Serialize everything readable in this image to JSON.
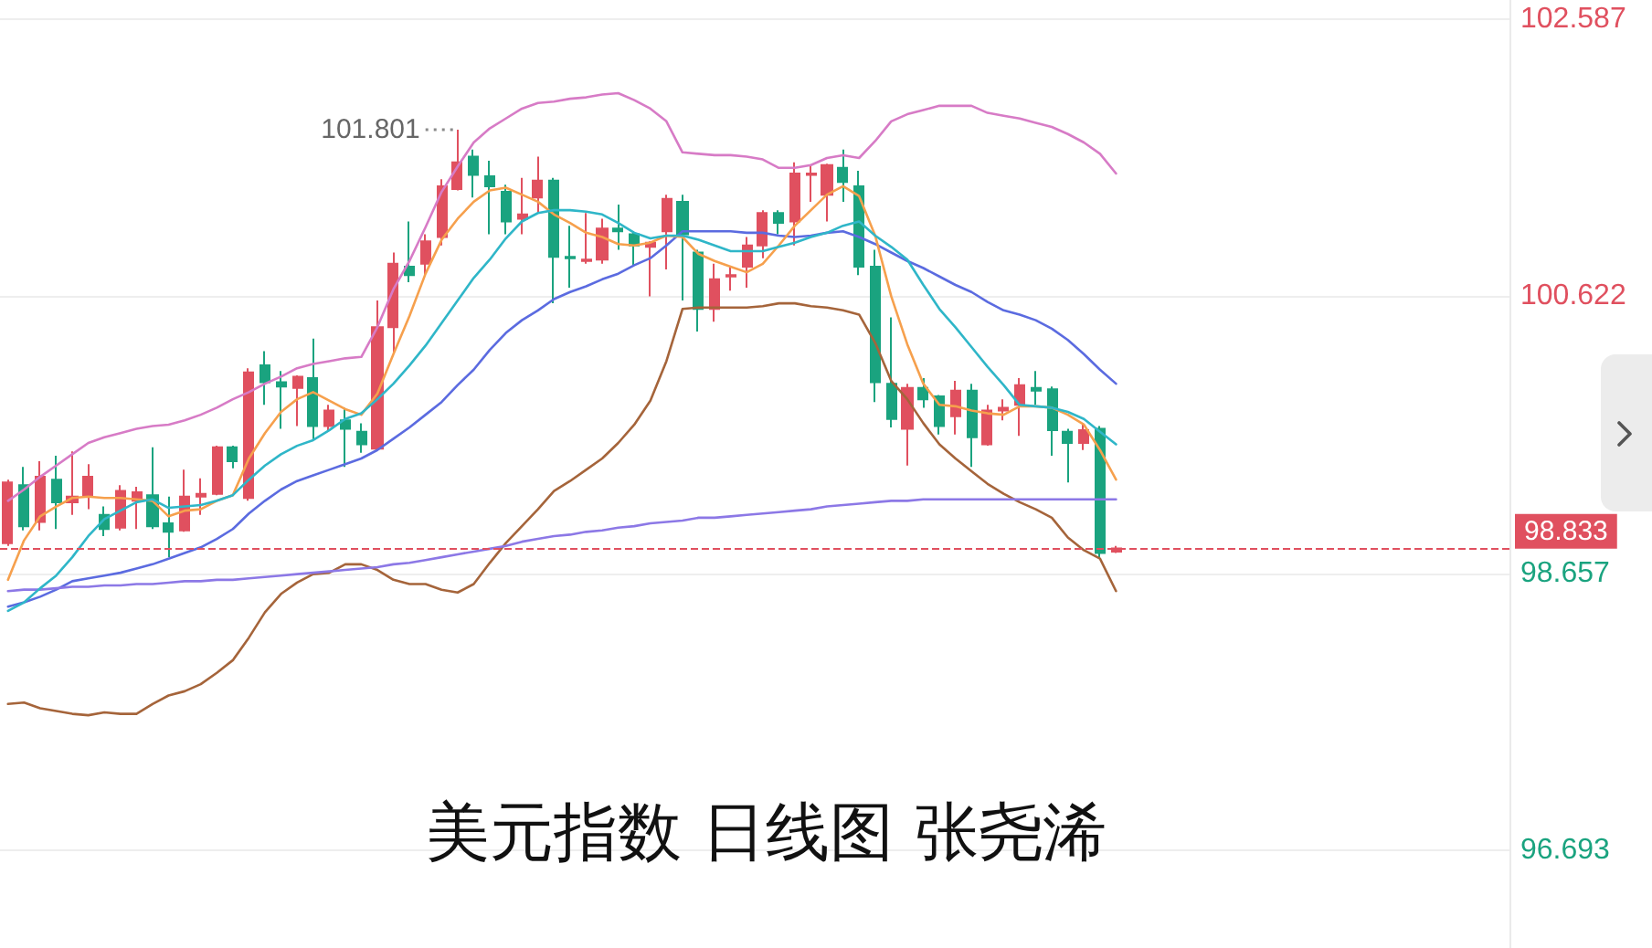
{
  "chart_data": {
    "type": "candlestick",
    "title": "美元指数 日线图 张尧浠",
    "categories": [
      null,
      null,
      null,
      null,
      null,
      null,
      null,
      null,
      null,
      null,
      null,
      null,
      null,
      null,
      null,
      null,
      null,
      null,
      null,
      null,
      null,
      null,
      null,
      null,
      null,
      null,
      null,
      null,
      null,
      null,
      null,
      null,
      null,
      null,
      null,
      null,
      null,
      null,
      null,
      null,
      null,
      null,
      null,
      null,
      null,
      null,
      null,
      null,
      null,
      null,
      null,
      null,
      null,
      null,
      null,
      null,
      null,
      null,
      null,
      null,
      null,
      null,
      null,
      null,
      null,
      null,
      null,
      null,
      null,
      null
    ],
    "ohlc": [
      [
        98.87,
        99.32,
        98.85,
        99.3
      ],
      [
        99.28,
        99.41,
        98.96,
        98.99
      ],
      [
        99.02,
        99.45,
        98.96,
        99.34
      ],
      [
        99.32,
        99.49,
        98.97,
        99.16
      ],
      [
        99.16,
        99.52,
        99.07,
        99.2
      ],
      [
        99.2,
        99.43,
        99.11,
        99.34
      ],
      [
        99.07,
        99.13,
        98.92,
        98.97
      ],
      [
        98.98,
        99.28,
        98.96,
        99.24
      ],
      [
        99.17,
        99.27,
        98.97,
        99.23
      ],
      [
        99.21,
        99.55,
        98.97,
        98.99
      ],
      [
        99.01,
        99.2,
        98.77,
        98.95
      ],
      [
        98.96,
        99.39,
        98.95,
        99.2
      ],
      [
        99.2,
        99.33,
        99.07,
        99.22
      ],
      [
        99.22,
        99.56,
        99.21,
        99.55
      ],
      [
        99.55,
        99.56,
        99.4,
        99.45
      ],
      [
        99.19,
        100.11,
        99.17,
        100.08
      ],
      [
        100.13,
        100.23,
        99.85,
        100.01
      ],
      [
        100.01,
        100.09,
        99.68,
        99.98
      ],
      [
        99.97,
        100.06,
        99.7,
        100.05
      ],
      [
        100.04,
        100.32,
        99.6,
        99.7
      ],
      [
        99.7,
        99.85,
        99.66,
        99.81
      ],
      [
        99.74,
        99.83,
        99.41,
        99.68
      ],
      [
        99.66,
        99.72,
        99.51,
        99.57
      ],
      [
        99.54,
        100.59,
        99.53,
        100.4
      ],
      [
        100.4,
        100.93,
        100.21,
        100.85
      ],
      [
        100.83,
        101.15,
        100.72,
        100.77
      ],
      [
        100.85,
        101.06,
        100.77,
        101.01
      ],
      [
        101.04,
        101.45,
        100.98,
        101.4
      ],
      [
        101.38,
        101.801,
        101.37,
        101.57
      ],
      [
        101.61,
        101.66,
        101.32,
        101.48
      ],
      [
        101.47,
        101.58,
        101.06,
        101.4
      ],
      [
        101.36,
        101.41,
        101.06,
        101.15
      ],
      [
        101.17,
        101.46,
        101.06,
        101.2
      ],
      [
        101.32,
        101.61,
        101.21,
        101.44
      ],
      [
        101.44,
        101.46,
        100.57,
        100.9
      ],
      [
        100.9,
        101.12,
        100.68,
        100.89
      ],
      [
        100.87,
        101.21,
        100.85,
        100.88
      ],
      [
        100.88,
        101.17,
        100.85,
        101.1
      ],
      [
        101.1,
        101.27,
        100.95,
        101.08
      ],
      [
        101.06,
        101.08,
        100.83,
        100.98
      ],
      [
        100.97,
        101.01,
        100.62,
        101.0
      ],
      [
        101.08,
        101.34,
        100.81,
        101.31
      ],
      [
        101.29,
        101.34,
        100.59,
        101.06
      ],
      [
        100.93,
        100.95,
        100.37,
        100.53
      ],
      [
        100.53,
        100.85,
        100.44,
        100.74
      ],
      [
        100.76,
        100.83,
        100.66,
        100.77
      ],
      [
        100.83,
        101.04,
        100.68,
        100.98
      ],
      [
        100.98,
        101.23,
        100.89,
        101.21
      ],
      [
        101.21,
        101.23,
        101.06,
        101.14
      ],
      [
        101.15,
        101.57,
        100.98,
        101.49
      ],
      [
        101.48,
        101.55,
        101.29,
        101.49
      ],
      [
        101.34,
        101.56,
        101.15,
        101.55
      ],
      [
        101.53,
        101.66,
        101.29,
        101.43
      ],
      [
        101.4,
        101.51,
        100.77,
        100.83
      ],
      [
        100.83,
        100.95,
        99.87,
        100.01
      ],
      [
        100.0,
        100.47,
        99.69,
        99.75
      ],
      [
        99.68,
        100.0,
        99.42,
        99.97
      ],
      [
        99.97,
        100.04,
        99.83,
        99.89
      ],
      [
        99.91,
        99.92,
        99.64,
        99.7
      ],
      [
        99.77,
        100.02,
        99.64,
        99.95
      ],
      [
        99.95,
        100.0,
        99.41,
        99.62
      ],
      [
        99.57,
        99.85,
        99.56,
        99.81
      ],
      [
        99.81,
        99.89,
        99.74,
        99.83
      ],
      [
        99.85,
        100.04,
        99.63,
        99.99
      ],
      [
        99.97,
        100.09,
        99.85,
        99.95
      ],
      [
        99.96,
        99.98,
        99.49,
        99.67
      ],
      [
        99.66,
        99.68,
        99.3,
        99.58
      ],
      [
        99.58,
        99.72,
        99.53,
        99.67
      ],
      [
        99.68,
        99.7,
        98.77,
        98.8
      ],
      [
        98.81,
        98.85,
        98.8,
        98.833
      ]
    ],
    "colors": [
      "#e0505f",
      "#1aa37f",
      "#e0505f",
      "#1aa37f",
      "#e0505f",
      "#e0505f",
      "#1aa37f",
      "#e0505f",
      "#e0505f",
      "#1aa37f",
      "#1aa37f",
      "#e0505f",
      "#e0505f",
      "#e0505f",
      "#1aa37f",
      "#e0505f",
      "#1aa37f",
      "#1aa37f",
      "#e0505f",
      "#1aa37f",
      "#e0505f",
      "#1aa37f",
      "#1aa37f",
      "#e0505f",
      "#e0505f",
      "#1aa37f",
      "#e0505f",
      "#e0505f",
      "#e0505f",
      "#1aa37f",
      "#1aa37f",
      "#1aa37f",
      "#e0505f",
      "#e0505f",
      "#1aa37f",
      "#1aa37f",
      "#e0505f",
      "#e0505f",
      "#1aa37f",
      "#1aa37f",
      "#e0505f",
      "#e0505f",
      "#1aa37f",
      "#1aa37f",
      "#e0505f",
      "#e0505f",
      "#e0505f",
      "#e0505f",
      "#1aa37f",
      "#e0505f",
      "#e0505f",
      "#e0505f",
      "#1aa37f",
      "#1aa37f",
      "#1aa37f",
      "#1aa37f",
      "#e0505f",
      "#1aa37f",
      "#1aa37f",
      "#e0505f",
      "#1aa37f",
      "#e0505f",
      "#e0505f",
      "#e0505f",
      "#1aa37f",
      "#1aa37f",
      "#1aa37f",
      "#e0505f",
      "#1aa37f",
      "#e0505f"
    ],
    "series": [
      {
        "type": "line",
        "color": "#d77bc6",
        "values": [
          99.17,
          99.25,
          99.34,
          99.42,
          99.5,
          99.58,
          99.62,
          99.65,
          99.68,
          99.7,
          99.71,
          99.74,
          99.78,
          99.83,
          99.89,
          99.94,
          100.0,
          100.05,
          100.11,
          100.14,
          100.16,
          100.18,
          100.19,
          100.4,
          100.67,
          100.87,
          101.11,
          101.36,
          101.54,
          101.71,
          101.81,
          101.88,
          101.95,
          101.99,
          102.0,
          102.02,
          102.03,
          102.05,
          102.06,
          102.01,
          101.95,
          101.86,
          101.64,
          101.63,
          101.62,
          101.62,
          101.61,
          101.59,
          101.53,
          101.53,
          101.55,
          101.6,
          101.62,
          101.6,
          101.72,
          101.86,
          101.91,
          101.94,
          101.97,
          101.97,
          101.97,
          101.92,
          101.9,
          101.88,
          101.85,
          101.82,
          101.77,
          101.71,
          101.63,
          101.49
        ]
      },
      {
        "type": "line",
        "color": "#a5643a",
        "values": [
          97.73,
          97.74,
          97.7,
          97.68,
          97.66,
          97.65,
          97.67,
          97.66,
          97.66,
          97.73,
          97.79,
          97.82,
          97.87,
          97.95,
          98.04,
          98.2,
          98.38,
          98.51,
          98.59,
          98.65,
          98.66,
          98.72,
          98.72,
          98.68,
          98.61,
          98.58,
          98.58,
          98.54,
          98.52,
          98.58,
          98.73,
          98.87,
          98.99,
          99.11,
          99.24,
          99.31,
          99.39,
          99.47,
          99.58,
          99.71,
          99.88,
          100.16,
          100.53,
          100.54,
          100.54,
          100.54,
          100.54,
          100.55,
          100.57,
          100.57,
          100.55,
          100.54,
          100.52,
          100.49,
          100.29,
          100.02,
          99.89,
          99.72,
          99.57,
          99.47,
          99.38,
          99.29,
          99.22,
          99.16,
          99.11,
          99.05,
          98.91,
          98.82,
          98.76,
          98.53
        ]
      },
      {
        "type": "line",
        "color": "#5b6be0",
        "values": [
          98.42,
          98.45,
          98.49,
          98.54,
          98.6,
          98.62,
          98.64,
          98.66,
          98.69,
          98.72,
          98.76,
          98.8,
          98.84,
          98.9,
          98.97,
          99.08,
          99.17,
          99.25,
          99.31,
          99.35,
          99.39,
          99.43,
          99.47,
          99.53,
          99.61,
          99.69,
          99.78,
          99.87,
          99.99,
          100.1,
          100.24,
          100.36,
          100.45,
          100.52,
          100.6,
          100.65,
          100.69,
          100.74,
          100.78,
          100.84,
          100.89,
          100.98,
          101.08,
          101.08,
          101.08,
          101.08,
          101.07,
          101.07,
          101.05,
          101.04,
          101.05,
          101.07,
          101.08,
          101.04,
          100.99,
          100.93,
          100.87,
          100.82,
          100.76,
          100.7,
          100.65,
          100.58,
          100.52,
          100.49,
          100.45,
          100.39,
          100.31,
          100.21,
          100.1,
          100.0
        ]
      },
      {
        "type": "line",
        "color": "#8c78e6",
        "values": [
          98.53,
          98.54,
          98.54,
          98.55,
          98.56,
          98.56,
          98.57,
          98.57,
          98.58,
          98.58,
          98.59,
          98.6,
          98.6,
          98.61,
          98.61,
          98.62,
          98.63,
          98.64,
          98.65,
          98.66,
          98.67,
          98.68,
          98.69,
          98.7,
          98.72,
          98.73,
          98.75,
          98.77,
          98.79,
          98.81,
          98.83,
          98.85,
          98.88,
          98.9,
          98.92,
          98.93,
          98.95,
          98.96,
          98.98,
          98.99,
          99.01,
          99.02,
          99.03,
          99.05,
          99.05,
          99.06,
          99.07,
          99.08,
          99.09,
          99.1,
          99.11,
          99.13,
          99.14,
          99.15,
          99.16,
          99.17,
          99.17,
          99.18,
          99.18,
          99.18,
          99.18,
          99.18,
          99.18,
          99.18,
          99.18,
          99.18,
          99.18,
          99.18,
          99.18,
          99.18
        ]
      },
      {
        "type": "line",
        "color": "#f6a04d",
        "values": [
          98.61,
          98.89,
          99.06,
          99.13,
          99.19,
          99.2,
          99.19,
          99.19,
          99.18,
          99.17,
          99.06,
          99.1,
          99.11,
          99.17,
          99.21,
          99.47,
          99.65,
          99.8,
          99.89,
          99.94,
          99.88,
          99.82,
          99.78,
          99.93,
          100.21,
          100.48,
          100.78,
          101.02,
          101.17,
          101.29,
          101.37,
          101.39,
          101.34,
          101.29,
          101.2,
          101.14,
          101.07,
          101.04,
          100.99,
          100.98,
          101.0,
          101.05,
          101.04,
          100.92,
          100.87,
          100.83,
          100.79,
          100.85,
          100.98,
          101.12,
          101.23,
          101.34,
          101.4,
          101.33,
          101.05,
          100.62,
          100.28,
          100.0,
          99.85,
          99.84,
          99.81,
          99.79,
          99.78,
          99.84,
          99.84,
          99.83,
          99.78,
          99.71,
          99.53,
          99.32
        ]
      },
      {
        "type": "line",
        "color": "#2fb6c8",
        "values": [
          98.39,
          98.45,
          98.55,
          98.64,
          98.77,
          98.92,
          99.04,
          99.1,
          99.16,
          99.18,
          99.12,
          99.13,
          99.14,
          99.17,
          99.21,
          99.32,
          99.42,
          99.5,
          99.56,
          99.6,
          99.67,
          99.75,
          99.79,
          99.89,
          100.0,
          100.13,
          100.27,
          100.43,
          100.59,
          100.75,
          100.88,
          101.03,
          101.15,
          101.21,
          101.23,
          101.23,
          101.22,
          101.2,
          101.14,
          101.07,
          101.03,
          101.05,
          101.05,
          101.02,
          100.98,
          100.94,
          100.94,
          100.94,
          100.97,
          101.0,
          101.04,
          101.07,
          101.12,
          101.15,
          101.05,
          100.97,
          100.88,
          100.7,
          100.53,
          100.4,
          100.26,
          100.12,
          99.99,
          99.85,
          99.84,
          99.83,
          99.8,
          99.75,
          99.66,
          99.57
        ]
      }
    ],
    "ylim": [
      96.0,
      102.72
    ],
    "yticks": [
      96.693,
      98.657,
      100.622,
      102.587
    ],
    "tick_labels": "y",
    "grid": "y",
    "marker": "none",
    "ref_lines": [
      {
        "axis": "y",
        "value": 98.833,
        "label": "98.833",
        "color": "#e0505f",
        "line_style": "dashed"
      }
    ],
    "annotations": [
      "101.801"
    ]
  }
}
